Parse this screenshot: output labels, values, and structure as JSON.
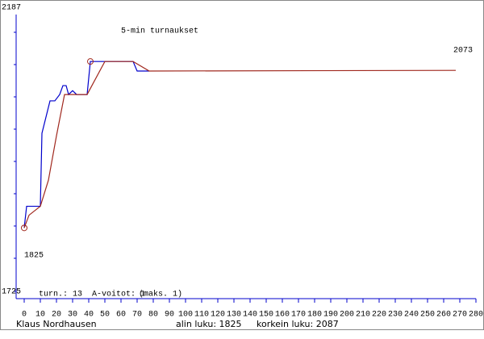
{
  "chart_data": {
    "type": "line",
    "title": "5-min turnaukset",
    "xlim": [
      -5,
      280
    ],
    "xticks": [
      0,
      10,
      20,
      30,
      40,
      50,
      60,
      70,
      80,
      90,
      100,
      110,
      120,
      130,
      140,
      150,
      160,
      170,
      180,
      190,
      200,
      210,
      220,
      230,
      240,
      250,
      260,
      270,
      280
    ],
    "ylim": [
      1725,
      2187
    ],
    "yticks": [
      1725,
      2187
    ],
    "series": [
      {
        "color": "#0000cc",
        "x": [
          0,
          1.5,
          10,
          11,
          16,
          19,
          22,
          24,
          26,
          27.5,
          30,
          32.5,
          39,
          41,
          67.5,
          70,
          77.5
        ],
        "values": [
          1825,
          1859,
          1859,
          1974,
          2025,
          2025,
          2035,
          2049,
          2049,
          2035,
          2041,
          2035,
          2035,
          2087,
          2087,
          2072,
          2072
        ]
      },
      {
        "color": "#a0281e",
        "x": [
          0,
          3,
          10,
          15,
          20,
          25,
          30,
          39,
          50,
          67.5,
          77.5,
          267.5
        ],
        "values": [
          1825,
          1845,
          1859,
          1900,
          1970,
          2035,
          2035,
          2035,
          2087,
          2087,
          2072,
          2073
        ]
      }
    ],
    "min_label": "1825",
    "last_label": "2073",
    "stats": [
      "turn.: 13",
      "A-voitot: 1",
      "(maks. 1)"
    ],
    "player": "Klaus Nordhausen",
    "low": "alin luku: 1825",
    "high": "korkein luku: 2087"
  }
}
